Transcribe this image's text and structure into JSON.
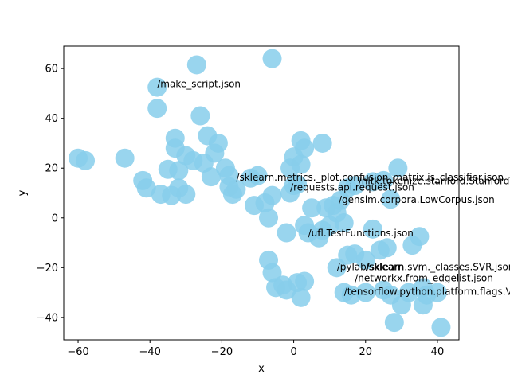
{
  "chart_data": {
    "type": "scatter",
    "xlabel": "x",
    "ylabel": "y",
    "xlim": [
      -64,
      46
    ],
    "ylim": [
      -49,
      69
    ],
    "xticks": [
      -60,
      -40,
      -20,
      0,
      20,
      40
    ],
    "yticks": [
      -40,
      -20,
      0,
      20,
      40,
      60
    ],
    "grid": false,
    "point_color": "#87ceeb",
    "points": [
      {
        "x": -27,
        "y": 61.5
      },
      {
        "x": -6,
        "y": 64
      },
      {
        "x": -38,
        "y": 52.5
      },
      {
        "x": -38,
        "y": 44
      },
      {
        "x": -26,
        "y": 41
      },
      {
        "x": -33,
        "y": 32
      },
      {
        "x": -24,
        "y": 33
      },
      {
        "x": -21,
        "y": 30
      },
      {
        "x": -33,
        "y": 28
      },
      {
        "x": -30,
        "y": 25
      },
      {
        "x": -22,
        "y": 26
      },
      {
        "x": -60,
        "y": 24
      },
      {
        "x": -58,
        "y": 23
      },
      {
        "x": -47,
        "y": 24
      },
      {
        "x": -28,
        "y": 23
      },
      {
        "x": -25,
        "y": 22
      },
      {
        "x": -35,
        "y": 19.5
      },
      {
        "x": -32,
        "y": 19
      },
      {
        "x": -19,
        "y": 20
      },
      {
        "x": -18,
        "y": 17
      },
      {
        "x": -23,
        "y": 16.5
      },
      {
        "x": -12,
        "y": 16
      },
      {
        "x": -10,
        "y": 17
      },
      {
        "x": -42,
        "y": 15
      },
      {
        "x": -41,
        "y": 12
      },
      {
        "x": -32,
        "y": 12
      },
      {
        "x": -37,
        "y": 9.5
      },
      {
        "x": -34,
        "y": 9
      },
      {
        "x": -30,
        "y": 9.5
      },
      {
        "x": -18,
        "y": 12.5
      },
      {
        "x": -16,
        "y": 11.5
      },
      {
        "x": -17,
        "y": 9.5
      },
      {
        "x": -11,
        "y": 5
      },
      {
        "x": -6,
        "y": 9
      },
      {
        "x": -8,
        "y": 6
      },
      {
        "x": -7,
        "y": 0
      },
      {
        "x": 2,
        "y": 31
      },
      {
        "x": 3,
        "y": 28
      },
      {
        "x": 8,
        "y": 30
      },
      {
        "x": 0,
        "y": 24.5
      },
      {
        "x": 2,
        "y": 21.5
      },
      {
        "x": -1,
        "y": 20
      },
      {
        "x": 0,
        "y": 13
      },
      {
        "x": -1,
        "y": 10
      },
      {
        "x": 1,
        "y": 13.5
      },
      {
        "x": 5,
        "y": 4
      },
      {
        "x": 9,
        "y": 4
      },
      {
        "x": 11,
        "y": 5
      },
      {
        "x": 13,
        "y": 7
      },
      {
        "x": 12,
        "y": 2
      },
      {
        "x": 14,
        "y": -2
      },
      {
        "x": 10,
        "y": -3
      },
      {
        "x": 8,
        "y": -5
      },
      {
        "x": 3,
        "y": -3
      },
      {
        "x": 4,
        "y": -6
      },
      {
        "x": 7,
        "y": -8
      },
      {
        "x": -2,
        "y": -6
      },
      {
        "x": 15,
        "y": 12
      },
      {
        "x": 17,
        "y": 13
      },
      {
        "x": 22,
        "y": 14.5
      },
      {
        "x": 25,
        "y": 15
      },
      {
        "x": 29,
        "y": 20
      },
      {
        "x": 27,
        "y": 7.5
      },
      {
        "x": 22,
        "y": -4.5
      },
      {
        "x": 26,
        "y": -12
      },
      {
        "x": 24,
        "y": -13
      },
      {
        "x": 33,
        "y": -11
      },
      {
        "x": 35,
        "y": -7.5
      },
      {
        "x": 12,
        "y": -20
      },
      {
        "x": 15,
        "y": -15
      },
      {
        "x": 17,
        "y": -14.5
      },
      {
        "x": 20,
        "y": -17
      },
      {
        "x": -7,
        "y": -17
      },
      {
        "x": -6,
        "y": -22
      },
      {
        "x": -5,
        "y": -28
      },
      {
        "x": -3,
        "y": -27
      },
      {
        "x": -2,
        "y": -29
      },
      {
        "x": 1,
        "y": -26
      },
      {
        "x": 3,
        "y": -25.5
      },
      {
        "x": 2,
        "y": -32
      },
      {
        "x": 14,
        "y": -30
      },
      {
        "x": 16,
        "y": -31
      },
      {
        "x": 20,
        "y": -30
      },
      {
        "x": 25,
        "y": -29
      },
      {
        "x": 27,
        "y": -31
      },
      {
        "x": 30,
        "y": -35
      },
      {
        "x": 28,
        "y": -42
      },
      {
        "x": 32,
        "y": -30
      },
      {
        "x": 36,
        "y": -28
      },
      {
        "x": 37,
        "y": -31
      },
      {
        "x": 40,
        "y": -30
      },
      {
        "x": 36,
        "y": -35
      },
      {
        "x": 41,
        "y": -44
      }
    ],
    "annotations": [
      {
        "text": "/make_script.json",
        "x": -38,
        "y": 52.5
      },
      {
        "text": "/sklearn.metrics._plot.confusion_matrix.is_classifier.json",
        "x": -16,
        "y": 15
      },
      {
        "text": "/nltk.tokenize.stanford.StanfordT",
        "x": 18,
        "y": 13.5
      },
      {
        "text": "/requests.api.request.json",
        "x": -1,
        "y": 11
      },
      {
        "text": "/gensim.corpora.LowCorpus.json",
        "x": 12.5,
        "y": 6
      },
      {
        "text": "/ufl.TestFunctions.json",
        "x": 4,
        "y": -7.5
      },
      {
        "text": "/pylab/sklearn.svm._classes.SVR.json",
        "x": 12,
        "y": -21
      },
      {
        "text": "/sklearn",
        "x": 20,
        "y": -21
      },
      {
        "text": "/networkx.from_edgelist.json",
        "x": 17,
        "y": -25.5
      },
      {
        "text": "/tensorflow.python.platform.flags.Va",
        "x": 14,
        "y": -31
      }
    ]
  }
}
